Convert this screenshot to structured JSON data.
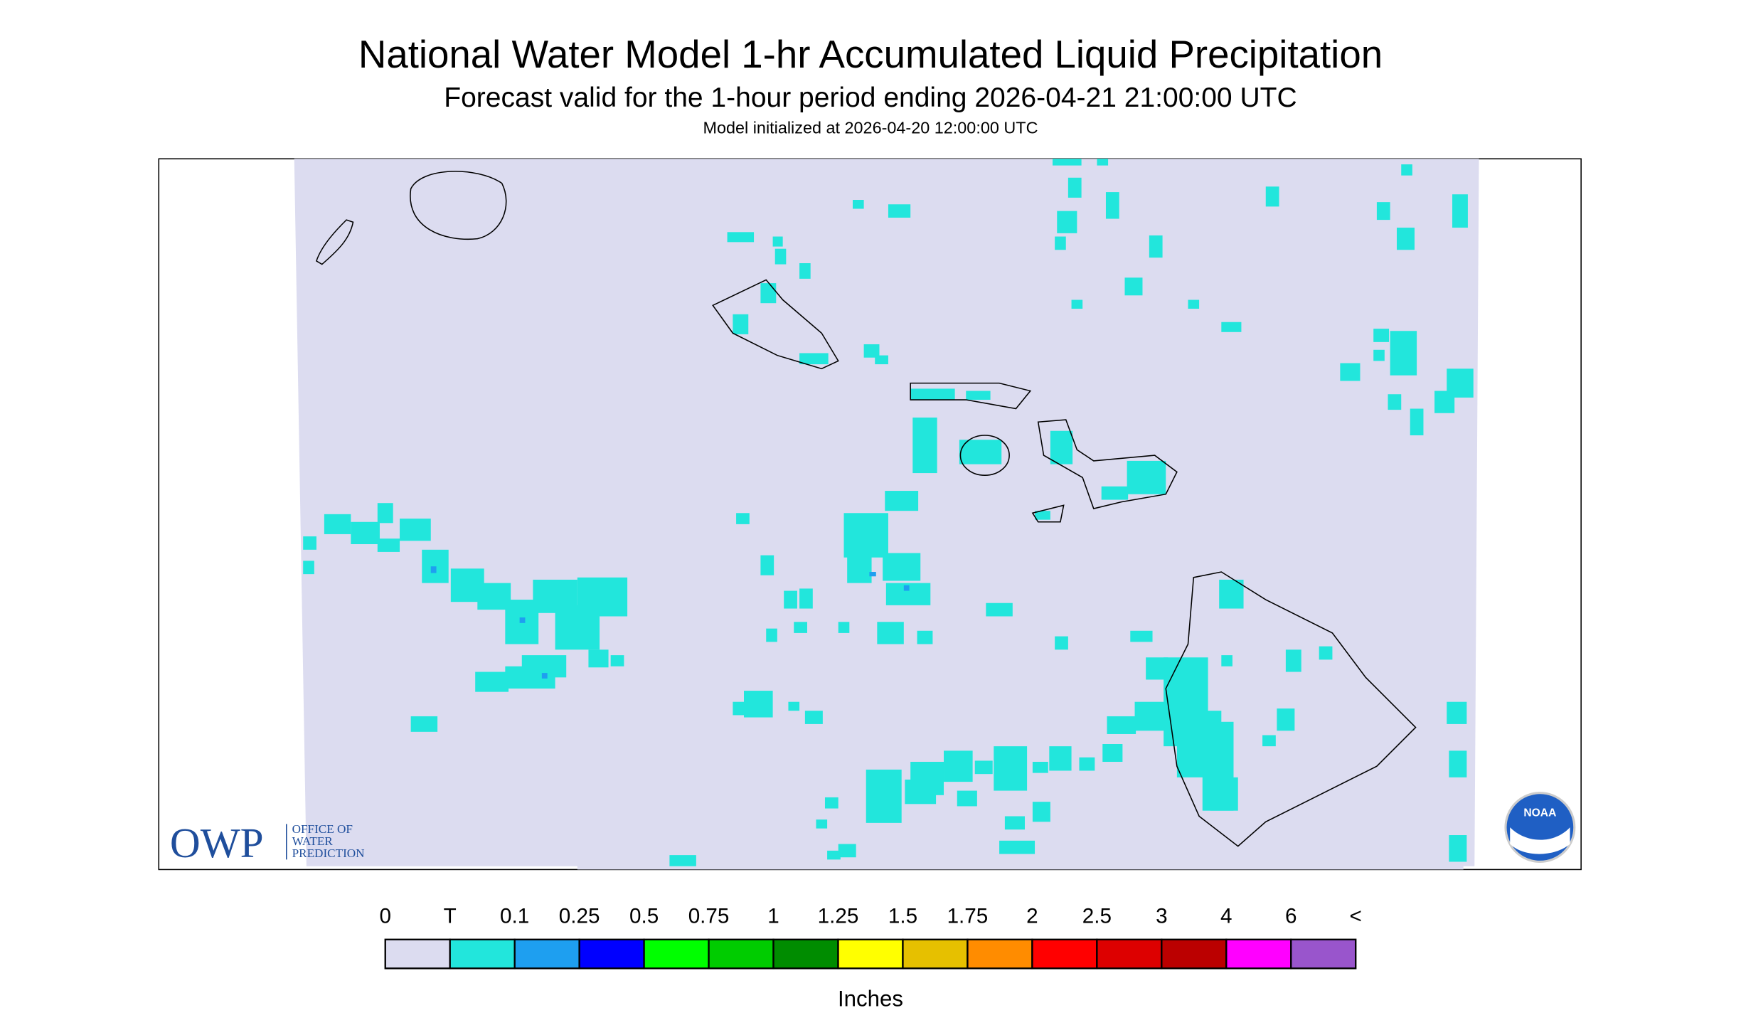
{
  "header": {
    "title": "National Water Model 1-hr Accumulated Liquid Precipitation",
    "subtitle": "Forecast valid for the 1-hour period ending 2026-04-21 21:00:00 UTC",
    "init_line": "Model initialized at 2026-04-20 12:00:00 UTC"
  },
  "map": {
    "logo": {
      "acronym": "OWP",
      "lines": [
        "OFFICE OF",
        "WATER",
        "PREDICTION"
      ]
    },
    "agency": "NOAA"
  },
  "legend": {
    "labels": [
      "0",
      "T",
      "0.1",
      "0.25",
      "0.5",
      "0.75",
      "1",
      "1.25",
      "1.5",
      "1.75",
      "2",
      "2.5",
      "3",
      "4",
      "6",
      "<"
    ],
    "colors": [
      "#dcdcf0",
      "#22e6dc",
      "#1e9ff0",
      "#0000ff",
      "#00ff00",
      "#00cc00",
      "#008c00",
      "#ffff00",
      "#e6c000",
      "#ff8c00",
      "#ff0000",
      "#dd0000",
      "#bb0000",
      "#ff00ff",
      "#9955cc"
    ],
    "unit": "Inches"
  }
}
